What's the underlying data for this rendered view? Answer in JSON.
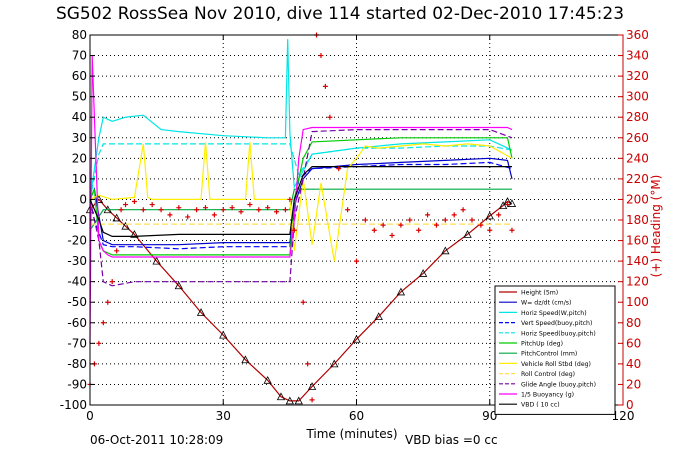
{
  "figure": {
    "title": "SG502 RossSea Nov 2010, dive 114 started 02-Dec-2010 17:45:23",
    "footer_date": "06-Oct-2011 10:28:09",
    "footer_note": "VBD bias =0 cc"
  },
  "chart_data": {
    "type": "line",
    "title": "SG502 RossSea Nov 2010, dive 114 started 02-Dec-2010 17:45:23",
    "xlabel": "Time (minutes)",
    "ylabel": "",
    "y2label": "(+) Heading (°M)",
    "xlim": [
      0,
      120
    ],
    "ylim": [
      -100,
      80
    ],
    "y2lim": [
      0,
      360
    ],
    "xticks": [
      0,
      30,
      60,
      90,
      120
    ],
    "yticks": [
      -100,
      -90,
      -80,
      -70,
      -60,
      -50,
      -40,
      -30,
      -20,
      -10,
      0,
      10,
      20,
      30,
      40,
      50,
      60,
      70,
      80
    ],
    "y2ticks": [
      0,
      20,
      40,
      60,
      80,
      100,
      120,
      140,
      160,
      180,
      200,
      220,
      240,
      260,
      280,
      300,
      320,
      340,
      360
    ],
    "grid": true,
    "legend_position": "bottom-right",
    "colors": {
      "axis": "#000000",
      "grid": "#000000",
      "y2axis": "#cc0000",
      "heading": "#dd0000"
    },
    "series": [
      {
        "name": "Height (5m)",
        "color": "#b00000",
        "style": "solid",
        "marker": "triangle",
        "x": [
          0,
          2,
          4,
          6,
          8,
          10,
          15,
          20,
          25,
          30,
          35,
          40,
          43,
          45,
          47,
          50,
          55,
          60,
          65,
          70,
          75,
          80,
          85,
          90,
          93,
          94,
          95
        ],
        "y": [
          -5,
          0,
          -5,
          -9,
          -13,
          -17,
          -30,
          -42,
          -55,
          -66,
          -78,
          -88,
          -96,
          -98,
          -98,
          -91,
          -80,
          -68,
          -57,
          -45,
          -36,
          -25,
          -17,
          -8,
          -3,
          -1,
          -2
        ]
      },
      {
        "name": "W= dz/dt (cm/s)",
        "color": "#0000cc",
        "style": "solid",
        "x": [
          0,
          1,
          2,
          3,
          5,
          10,
          20,
          30,
          40,
          44,
          45,
          46,
          48,
          50,
          60,
          70,
          80,
          90,
          94,
          95
        ],
        "y": [
          0,
          5,
          -8,
          -20,
          -22,
          -22,
          -22,
          -21,
          -21,
          -21,
          -21,
          -3,
          10,
          15,
          17,
          18,
          19,
          20,
          19,
          10
        ]
      },
      {
        "name": "Horiz Speed(W,pitch)",
        "color": "#00e5e5",
        "style": "solid",
        "x": [
          0,
          2,
          3,
          5,
          8,
          12,
          16,
          20,
          30,
          40,
          44,
          44.5,
          45,
          46,
          48,
          50,
          60,
          70,
          80,
          90,
          95
        ],
        "y": [
          0,
          30,
          40,
          38,
          40,
          41,
          34,
          33,
          31,
          30,
          30,
          78,
          32,
          6,
          14,
          22,
          25,
          27,
          28,
          29,
          24
        ]
      },
      {
        "name": "Vert Speed(buoy,pitch)",
        "color": "#0000ff",
        "style": "dashed",
        "x": [
          0,
          1,
          3,
          5,
          10,
          20,
          30,
          40,
          45,
          47,
          50,
          60,
          70,
          80,
          90,
          95
        ],
        "y": [
          0,
          -10,
          -22,
          -23,
          -23,
          -24,
          -23,
          -23,
          -23,
          10,
          15,
          16,
          17,
          17,
          18,
          15
        ]
      },
      {
        "name": "Horiz Speed(buoy,pitch)",
        "color": "#00e5e5",
        "style": "dashed",
        "x": [
          0,
          2,
          3,
          5,
          10,
          20,
          30,
          40,
          45,
          47,
          50,
          60,
          70,
          80,
          90,
          95
        ],
        "y": [
          0,
          22,
          27,
          27,
          27,
          27,
          27,
          27,
          27,
          12,
          22,
          25,
          25,
          26,
          26,
          24
        ]
      },
      {
        "name": "PitchUp (deg)",
        "color": "#00cc00",
        "style": "solid",
        "x": [
          0,
          1,
          2,
          3,
          5,
          10,
          20,
          30,
          40,
          44,
          45,
          46,
          48,
          50,
          60,
          70,
          80,
          90,
          94,
          95
        ],
        "y": [
          0,
          5,
          -20,
          -25,
          -27,
          -27,
          -27,
          -27,
          -27,
          -27,
          -27,
          0,
          20,
          28,
          29,
          30,
          30,
          30,
          30,
          20
        ]
      },
      {
        "name": "PitchControl (mm)",
        "color": "#00aa44",
        "style": "solid",
        "x": [
          0,
          3,
          10,
          20,
          30,
          40,
          45,
          46,
          60,
          70,
          80,
          90,
          95
        ],
        "y": [
          -15,
          -5,
          -5,
          -5,
          -5,
          -5,
          -5,
          5,
          5,
          5,
          5,
          5,
          5
        ]
      },
      {
        "name": "Vehicle Roll Stbd (deg)",
        "color": "#ffee00",
        "style": "solid",
        "x": [
          0,
          2,
          5,
          10,
          12,
          13,
          14,
          20,
          25,
          26,
          27,
          30,
          35,
          36,
          37,
          40,
          45,
          46,
          48,
          50,
          52,
          55,
          58,
          60,
          62,
          65,
          70,
          75,
          80,
          85,
          90,
          95
        ],
        "y": [
          0,
          2,
          0,
          1,
          27,
          1,
          0,
          0,
          0,
          28,
          0,
          0,
          0,
          28,
          0,
          0,
          0,
          -25,
          10,
          -22,
          8,
          -30,
          15,
          20,
          26,
          25,
          26,
          27,
          26,
          27,
          26,
          20
        ]
      },
      {
        "name": "Roll Control (deg)",
        "color": "#ffdd55",
        "style": "dashed",
        "x": [
          0,
          3,
          10,
          20,
          30,
          40,
          45,
          47,
          60,
          70,
          80,
          90,
          95
        ],
        "y": [
          -12,
          -12,
          -12,
          -12,
          -12,
          -12,
          -12,
          -12,
          -12,
          -12,
          -12,
          -12,
          -12
        ]
      },
      {
        "name": "Glide Angle (buoy,pitch)",
        "color": "#7700aa",
        "style": "dashed",
        "x": [
          0,
          2,
          3,
          5,
          10,
          20,
          30,
          40,
          45,
          46,
          48,
          50,
          60,
          70,
          80,
          90,
          95
        ],
        "y": [
          0,
          -20,
          -40,
          -42,
          -40,
          -40,
          -40,
          -40,
          -40,
          -10,
          10,
          33,
          34,
          34,
          34,
          34,
          30
        ]
      },
      {
        "name": "1/5 Buoyancy (g)",
        "color": "#ff00ff",
        "style": "solid",
        "x": [
          0,
          0.5,
          1,
          2,
          3,
          4,
          5,
          10,
          20,
          30,
          40,
          44,
          45,
          46,
          47,
          48,
          50,
          60,
          70,
          80,
          90,
          94,
          95
        ],
        "y": [
          -70,
          70,
          40,
          -20,
          -25,
          -27,
          -28,
          -28,
          -28,
          -28,
          -28,
          -28,
          -28,
          -10,
          20,
          34,
          35,
          35,
          35,
          35,
          35,
          35,
          34
        ]
      },
      {
        "name": "VBD ( 10 cc)",
        "color": "#000000",
        "style": "solid",
        "x": [
          0,
          2,
          3,
          5,
          10,
          20,
          30,
          40,
          45,
          46,
          48,
          50,
          60,
          70,
          80,
          90,
          95
        ],
        "y": [
          0,
          -10,
          -16,
          -18,
          -18,
          -17,
          -17,
          -17,
          -17,
          0,
          12,
          16,
          16,
          16,
          16,
          16,
          16
        ]
      },
      {
        "name": "Heading",
        "axis": "right",
        "color": "#dd0000",
        "marker": "plus",
        "x": [
          0,
          1,
          2,
          3,
          4,
          5,
          6,
          7,
          8,
          10,
          12,
          14,
          16,
          18,
          20,
          22,
          24,
          26,
          28,
          30,
          32,
          34,
          36,
          38,
          40,
          42,
          44,
          45,
          46,
          48,
          49,
          50,
          51,
          52,
          53,
          54,
          56,
          58,
          60,
          62,
          64,
          66,
          68,
          70,
          72,
          74,
          76,
          78,
          80,
          82,
          84,
          86,
          88,
          90,
          92,
          94,
          95
        ],
        "y": [
          20,
          40,
          60,
          80,
          100,
          120,
          150,
          190,
          195,
          198,
          190,
          195,
          190,
          185,
          192,
          183,
          190,
          192,
          185,
          190,
          192,
          188,
          195,
          190,
          192,
          188,
          190,
          200,
          170,
          100,
          40,
          5,
          360,
          340,
          310,
          280,
          230,
          190,
          140,
          180,
          170,
          175,
          165,
          175,
          180,
          170,
          185,
          175,
          180,
          185,
          190,
          180,
          175,
          170,
          185,
          195,
          170
        ]
      }
    ]
  }
}
